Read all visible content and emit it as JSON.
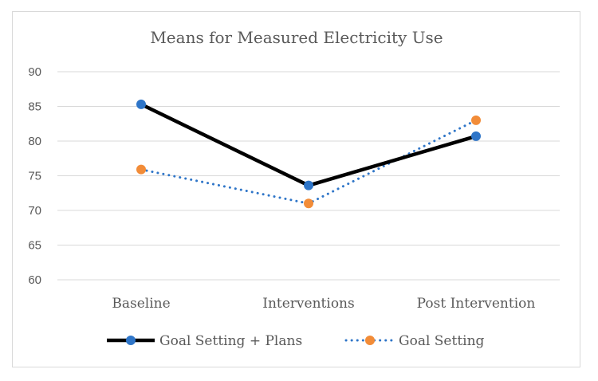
{
  "chart_data": {
    "type": "line",
    "title": "Means for Measured Electricity Use",
    "categories": [
      "Baseline",
      "Interventions",
      "Post Intervention"
    ],
    "ylim": [
      60,
      90
    ],
    "yticks": [
      60,
      65,
      70,
      75,
      80,
      85,
      90
    ],
    "grid": true,
    "legend_position": "bottom",
    "series": [
      {
        "name": "Goal Setting + Plans",
        "values": [
          85.3,
          73.6,
          80.7
        ],
        "line_color": "#000000",
        "marker_color": "#2e75c8",
        "line_style": "solid"
      },
      {
        "name": "Goal Setting",
        "values": [
          75.9,
          71.0,
          83.0
        ],
        "line_color": "#2e75c8",
        "marker_color": "#f28c38",
        "line_style": "dotted"
      }
    ]
  }
}
